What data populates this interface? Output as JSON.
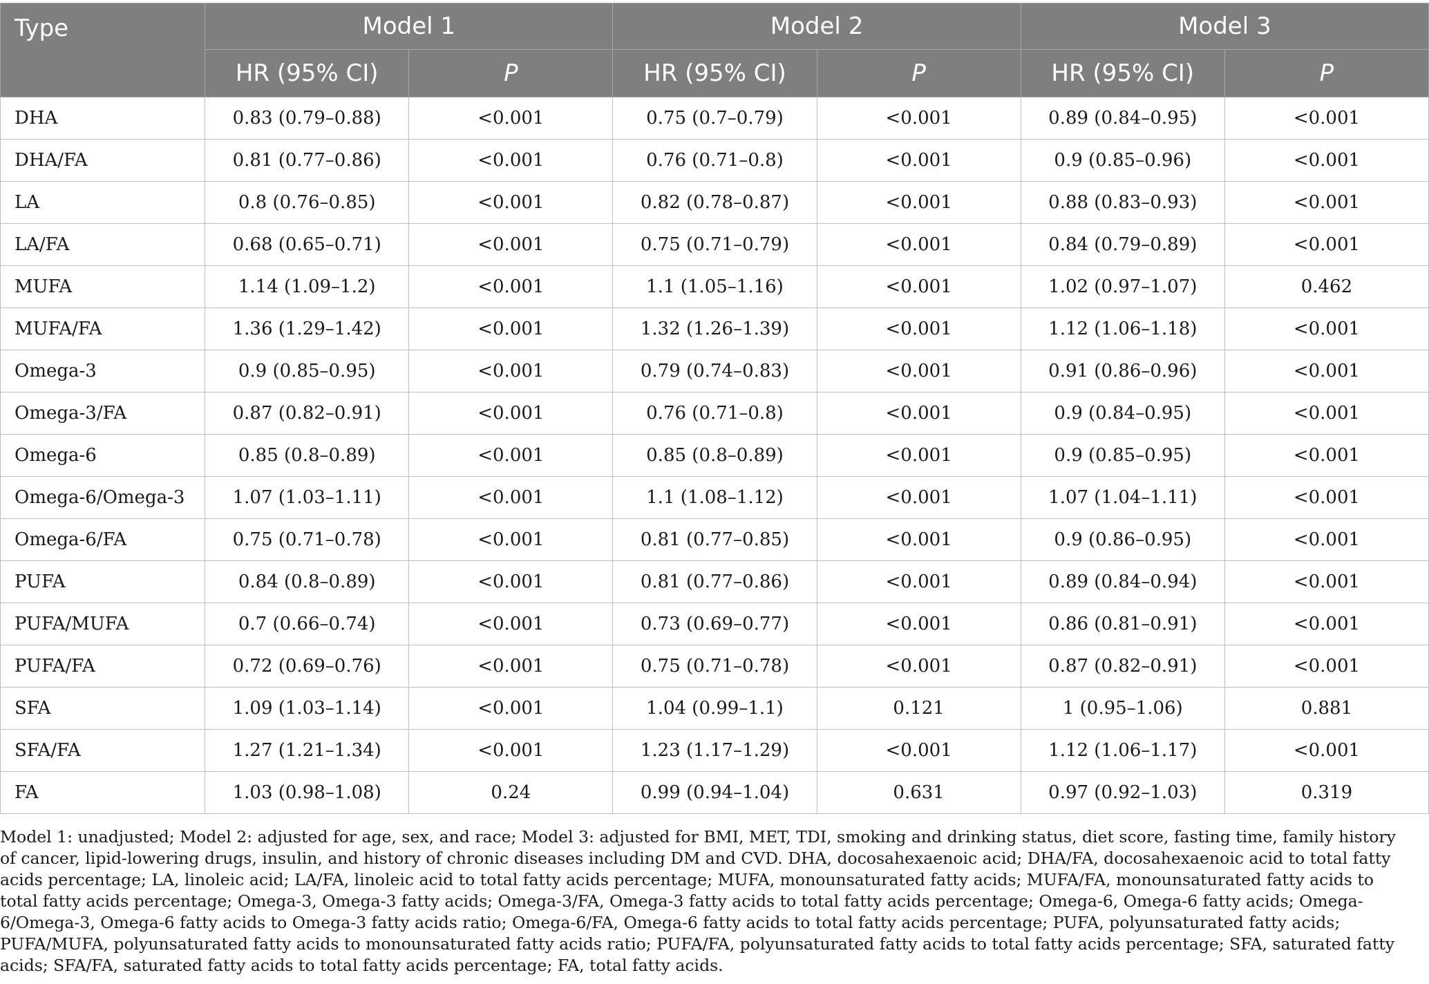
{
  "header": {
    "type_label": "Type",
    "models": [
      "Model 1",
      "Model 2",
      "Model 3"
    ],
    "hr_label": "HR (95% CI)",
    "p_label": "P"
  },
  "rows": [
    {
      "type": "DHA",
      "m1_hr": "0.83 (0.79–0.88)",
      "m1_p": "<0.001",
      "m2_hr": "0.75 (0.7–0.79)",
      "m2_p": "<0.001",
      "m3_hr": "0.89 (0.84–0.95)",
      "m3_p": "<0.001"
    },
    {
      "type": "DHA/FA",
      "m1_hr": "0.81 (0.77–0.86)",
      "m1_p": "<0.001",
      "m2_hr": "0.76 (0.71–0.8)",
      "m2_p": "<0.001",
      "m3_hr": "0.9 (0.85–0.96)",
      "m3_p": "<0.001"
    },
    {
      "type": "LA",
      "m1_hr": "0.8 (0.76–0.85)",
      "m1_p": "<0.001",
      "m2_hr": "0.82 (0.78–0.87)",
      "m2_p": "<0.001",
      "m3_hr": "0.88 (0.83–0.93)",
      "m3_p": "<0.001"
    },
    {
      "type": "LA/FA",
      "m1_hr": "0.68 (0.65–0.71)",
      "m1_p": "<0.001",
      "m2_hr": "0.75 (0.71–0.79)",
      "m2_p": "<0.001",
      "m3_hr": "0.84 (0.79–0.89)",
      "m3_p": "<0.001"
    },
    {
      "type": "MUFA",
      "m1_hr": "1.14 (1.09–1.2)",
      "m1_p": "<0.001",
      "m2_hr": "1.1 (1.05–1.16)",
      "m2_p": "<0.001",
      "m3_hr": "1.02 (0.97–1.07)",
      "m3_p": "0.462"
    },
    {
      "type": "MUFA/FA",
      "m1_hr": "1.36 (1.29–1.42)",
      "m1_p": "<0.001",
      "m2_hr": "1.32 (1.26–1.39)",
      "m2_p": "<0.001",
      "m3_hr": "1.12 (1.06–1.18)",
      "m3_p": "<0.001"
    },
    {
      "type": "Omega-3",
      "m1_hr": "0.9 (0.85–0.95)",
      "m1_p": "<0.001",
      "m2_hr": "0.79 (0.74–0.83)",
      "m2_p": "<0.001",
      "m3_hr": "0.91 (0.86–0.96)",
      "m3_p": "<0.001"
    },
    {
      "type": "Omega-3/FA",
      "m1_hr": "0.87 (0.82–0.91)",
      "m1_p": "<0.001",
      "m2_hr": "0.76 (0.71–0.8)",
      "m2_p": "<0.001",
      "m3_hr": "0.9 (0.84–0.95)",
      "m3_p": "<0.001"
    },
    {
      "type": "Omega-6",
      "m1_hr": "0.85 (0.8–0.89)",
      "m1_p": "<0.001",
      "m2_hr": "0.85 (0.8–0.89)",
      "m2_p": "<0.001",
      "m3_hr": "0.9 (0.85–0.95)",
      "m3_p": "<0.001"
    },
    {
      "type": "Omega-6/Omega-3",
      "m1_hr": "1.07 (1.03–1.11)",
      "m1_p": "<0.001",
      "m2_hr": "1.1 (1.08–1.12)",
      "m2_p": "<0.001",
      "m3_hr": "1.07 (1.04–1.11)",
      "m3_p": "<0.001"
    },
    {
      "type": "Omega-6/FA",
      "m1_hr": "0.75 (0.71–0.78)",
      "m1_p": "<0.001",
      "m2_hr": "0.81 (0.77–0.85)",
      "m2_p": "<0.001",
      "m3_hr": "0.9 (0.86–0.95)",
      "m3_p": "<0.001"
    },
    {
      "type": "PUFA",
      "m1_hr": "0.84 (0.8–0.89)",
      "m1_p": "<0.001",
      "m2_hr": "0.81 (0.77–0.86)",
      "m2_p": "<0.001",
      "m3_hr": "0.89 (0.84–0.94)",
      "m3_p": "<0.001"
    },
    {
      "type": "PUFA/MUFA",
      "m1_hr": "0.7 (0.66–0.74)",
      "m1_p": "<0.001",
      "m2_hr": "0.73 (0.69–0.77)",
      "m2_p": "<0.001",
      "m3_hr": "0.86 (0.81–0.91)",
      "m3_p": "<0.001"
    },
    {
      "type": "PUFA/FA",
      "m1_hr": "0.72 (0.69–0.76)",
      "m1_p": "<0.001",
      "m2_hr": "0.75 (0.71–0.78)",
      "m2_p": "<0.001",
      "m3_hr": "0.87 (0.82–0.91)",
      "m3_p": "<0.001"
    },
    {
      "type": "SFA",
      "m1_hr": "1.09 (1.03–1.14)",
      "m1_p": "<0.001",
      "m2_hr": "1.04 (0.99–1.1)",
      "m2_p": "0.121",
      "m3_hr": "1 (0.95–1.06)",
      "m3_p": "0.881"
    },
    {
      "type": "SFA/FA",
      "m1_hr": "1.27 (1.21–1.34)",
      "m1_p": "<0.001",
      "m2_hr": "1.23 (1.17–1.29)",
      "m2_p": "<0.001",
      "m3_hr": "1.12 (1.06–1.17)",
      "m3_p": "<0.001"
    },
    {
      "type": "FA",
      "m1_hr": "1.03 (0.98–1.08)",
      "m1_p": "0.24",
      "m2_hr": "0.99 (0.94–1.04)",
      "m2_p": "0.631",
      "m3_hr": "0.97 (0.92–1.03)",
      "m3_p": "0.319"
    }
  ],
  "footnote": "Model 1: unadjusted; Model 2: adjusted for age, sex, and race; Model 3: adjusted for BMI, MET, TDI, smoking and drinking status, diet score, fasting time, family history of cancer, lipid-lowering drugs, insulin, and history of chronic diseases including DM and CVD. DHA, docosahexaenoic acid; DHA/FA, docosahexaenoic acid to total fatty acids percentage; LA, linoleic acid; LA/FA, linoleic acid to total fatty acids percentage; MUFA, monounsaturated fatty acids; MUFA/FA, monounsaturated fatty acids to total fatty acids percentage; Omega-3, Omega-3 fatty acids; Omega-3/FA, Omega-3 fatty acids to total fatty acids percentage; Omega-6, Omega-6 fatty acids; Omega-6/Omega-3, Omega-6 fatty acids to Omega-3 fatty acids ratio; Omega-6/FA, Omega-6 fatty acids to total fatty acids percentage; PUFA, polyunsaturated fatty acids; PUFA/MUFA, polyunsaturated fatty acids to monounsaturated fatty acids ratio; PUFA/FA, polyunsaturated fatty acids to total fatty acids percentage; SFA, saturated fatty acids; SFA/FA, saturated fatty acids to total fatty acids percentage; FA, total fatty acids."
}
